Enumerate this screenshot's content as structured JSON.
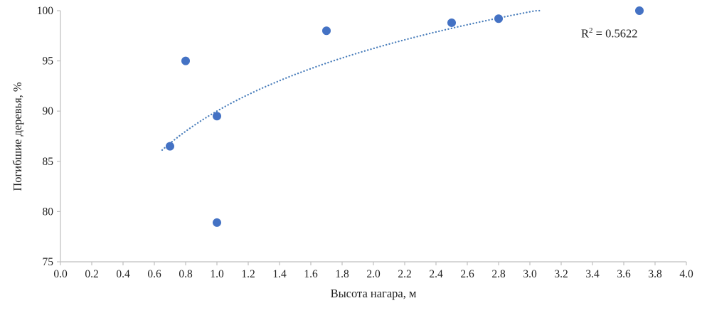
{
  "chart_data": {
    "type": "scatter",
    "xlabel": "Высота нагара, м",
    "ylabel": "Погибшие деревья, %",
    "xlim": [
      0.0,
      4.0
    ],
    "ylim": [
      75,
      100
    ],
    "xticks": [
      "0.0",
      "0.2",
      "0.4",
      "0.6",
      "0.8",
      "1.0",
      "1.2",
      "1.4",
      "1.6",
      "1.8",
      "2.0",
      "2.2",
      "2.4",
      "2.6",
      "2.8",
      "3.0",
      "3.2",
      "3.4",
      "3.6",
      "3.8",
      "4.0"
    ],
    "yticks": [
      "75",
      "80",
      "85",
      "90",
      "95",
      "100"
    ],
    "grid": false,
    "legend": "none",
    "points": [
      {
        "x": 0.7,
        "y": 86.5
      },
      {
        "x": 0.8,
        "y": 95.0
      },
      {
        "x": 1.0,
        "y": 89.5
      },
      {
        "x": 1.0,
        "y": 78.9
      },
      {
        "x": 1.7,
        "y": 98.0
      },
      {
        "x": 2.5,
        "y": 98.8
      },
      {
        "x": 2.8,
        "y": 99.2
      },
      {
        "x": 3.7,
        "y": 100.0
      }
    ],
    "trendline": {
      "type": "logarithmic",
      "style": "dotted",
      "a": 9.0,
      "b": 90.0,
      "x_start": 0.65,
      "x_end": 3.08
    },
    "annotation": {
      "base": "R",
      "sup": "2",
      "rest": " = 0.5622"
    },
    "point_color": "#4472C4",
    "trend_color": "#4a7ebb",
    "axis_color": "#BFBFBF",
    "text_color": "#1f1f1f"
  }
}
